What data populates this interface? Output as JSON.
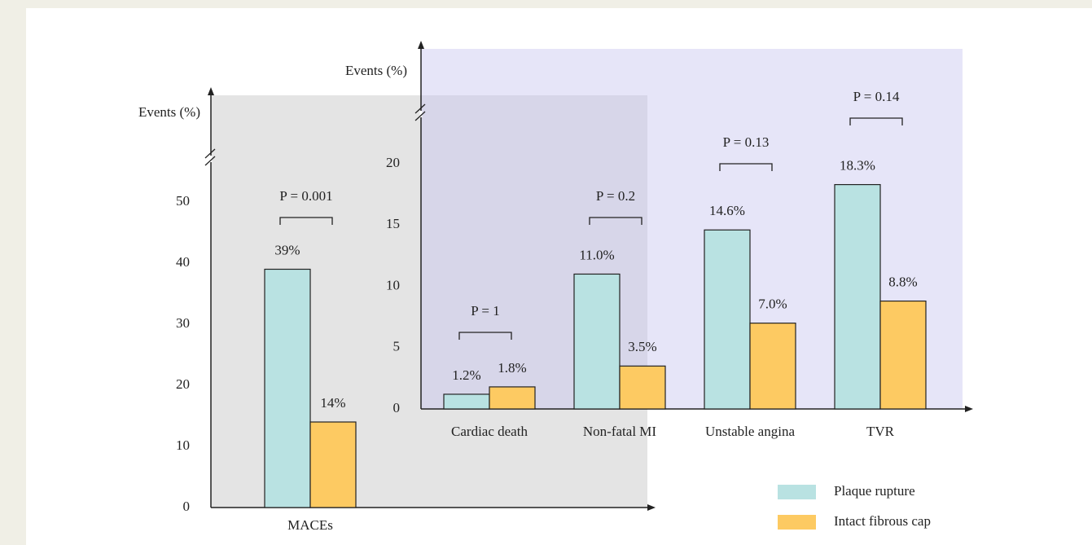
{
  "chart_data": [
    {
      "type": "bar",
      "y_label": "Events (%)",
      "categories": [
        "MACEs"
      ],
      "annotations": [
        "P = 0.001"
      ],
      "series": [
        {
          "color": "#b9e2e2",
          "values": [
            39
          ],
          "value_labels": [
            "39%"
          ]
        },
        {
          "color": "#fdca62",
          "values": [
            14
          ],
          "value_labels": [
            "14%"
          ]
        }
      ],
      "ylim": [
        0,
        50
      ],
      "yticks": [
        0,
        10,
        20,
        30,
        40,
        50
      ]
    },
    {
      "type": "bar",
      "y_label": "Events (%)",
      "categories": [
        "Cardiac death",
        "Non-fatal MI",
        "Unstable angina",
        "TVR"
      ],
      "annotations": [
        "P = 1",
        "P = 0.2",
        "P = 0.13",
        "P = 0.14"
      ],
      "series": [
        {
          "name": "Plaque rupture",
          "color": "#b9e2e2",
          "values": [
            1.2,
            11.0,
            14.6,
            18.3
          ],
          "value_labels": [
            "1.2%",
            "11.0%",
            "14.6%",
            "18.3%"
          ]
        },
        {
          "name": "Intact fibrous cap",
          "color": "#fdca62",
          "values": [
            1.8,
            3.5,
            7.0,
            8.8
          ],
          "value_labels": [
            "1.8%",
            "3.5%",
            "7.0%",
            "8.8%"
          ]
        }
      ],
      "ylim": [
        0,
        20
      ],
      "yticks": [
        0,
        5,
        10,
        15,
        20
      ]
    }
  ]
}
